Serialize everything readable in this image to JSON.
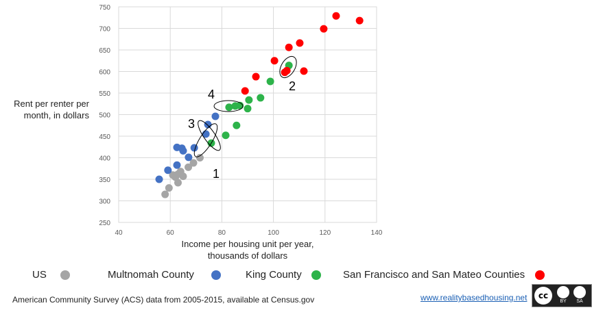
{
  "chart_data": {
    "type": "scatter",
    "x_label": "Income per housing unit per year, thousands of dollars",
    "y_label": "Rent per renter per month, in dollars",
    "xlim": [
      40,
      140
    ],
    "xticks": [
      40,
      60,
      80,
      100,
      120,
      140
    ],
    "ylim": [
      250,
      750
    ],
    "yticks": [
      250,
      300,
      350,
      400,
      450,
      500,
      550,
      600,
      650,
      700,
      750
    ],
    "grid": true,
    "series": [
      {
        "name": "US",
        "color": "#a5a5a5",
        "x": [
          58,
          59.5,
          61,
          62,
          63,
          63,
          64,
          65,
          67,
          69,
          71.5
        ],
        "values": [
          315,
          330,
          360,
          355,
          342,
          362,
          368,
          357,
          378,
          388,
          400
        ]
      },
      {
        "name": "Multnomah County",
        "color": "#4472c4",
        "x": [
          55.7,
          59.1,
          62.6,
          62.6,
          64.5,
          65,
          67.1,
          69.3,
          73.8,
          74.6,
          77.5
        ],
        "values": [
          350,
          371,
          383,
          424,
          422,
          416,
          401,
          423,
          455,
          477,
          496
        ]
      },
      {
        "name": "King County",
        "color": "#2db34a",
        "x": [
          75.9,
          81.5,
          82.8,
          85.2,
          87,
          85.7,
          90,
          90.5,
          95,
          98.8,
          106
        ],
        "values": [
          434,
          452,
          517,
          520,
          521,
          475,
          514,
          534,
          539,
          577,
          614
        ]
      },
      {
        "name": "San Francisco and San Mateo Counties",
        "color": "#ff0000",
        "x": [
          89,
          93.2,
          100.4,
          104.4,
          105.2,
          106,
          110.2,
          111.8,
          119.5,
          124.3,
          133.4
        ],
        "values": [
          555,
          588,
          625,
          598,
          602,
          656,
          666,
          601,
          699,
          729,
          718
        ]
      }
    ],
    "annotations": [
      "1",
      "2",
      "3",
      "4"
    ],
    "source": "American Community Survey (ACS) data from 2005-2015, available at Census.gov",
    "link": "www.realitybasedhousing.net",
    "license": [
      "BY",
      "SA"
    ]
  }
}
